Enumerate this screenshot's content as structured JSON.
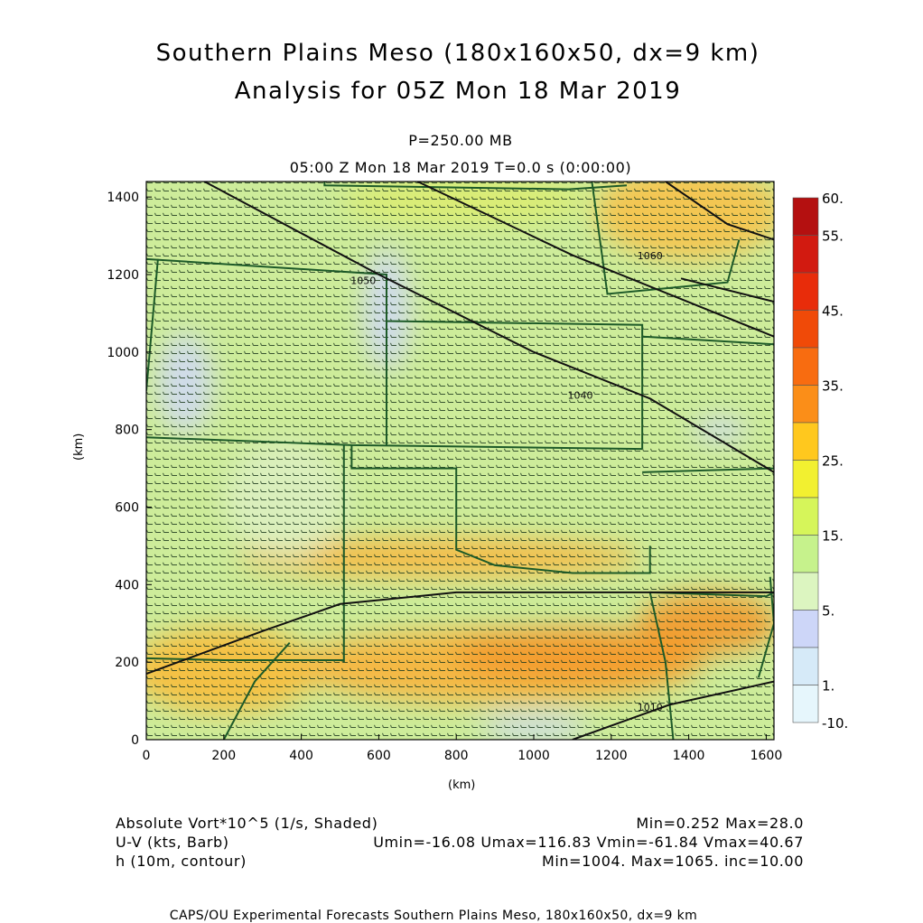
{
  "header": {
    "title_line1": "Southern Plains Meso (180x160x50, dx=9 km)",
    "title_line2": "Analysis for 05Z Mon 18 Mar 2019",
    "level": "P=250.00 MB",
    "valid_time": "05:00 Z Mon 18 Mar 2019    T=0.0 s (0:00:00)"
  },
  "chart_data": {
    "type": "heatmap",
    "xlabel": "(km)",
    "ylabel": "(km)",
    "xlim": [
      0,
      1620
    ],
    "ylim": [
      0,
      1440
    ],
    "x_ticks": [
      "0",
      "200",
      "400",
      "600",
      "800",
      "1000",
      "1200",
      "1400",
      "1600"
    ],
    "y_ticks": [
      "0",
      "200",
      "400",
      "600",
      "800",
      "1000",
      "1200",
      "1400"
    ],
    "colorbar": {
      "labels": [
        "60.",
        "55.",
        "45.",
        "35.",
        "25.",
        "15.",
        "5.",
        "1.",
        "-10."
      ],
      "colors": [
        "#b41010",
        "#d21a10",
        "#e82c0a",
        "#f04a08",
        "#f86c10",
        "#fb8e18",
        "#ffc81e",
        "#f2f030",
        "#d6f55a",
        "#c6f28c",
        "#dcf5c0",
        "#cdd6f8",
        "#d6eaf8",
        "#e6f6fc"
      ]
    },
    "contours": [
      {
        "label": "1060",
        "x_km": 1300,
        "y_km": 1240
      },
      {
        "label": "1050",
        "x_km": 560,
        "y_km": 1175
      },
      {
        "label": "1040",
        "x_km": 1120,
        "y_km": 880
      },
      {
        "label": "1010",
        "x_km": 1300,
        "y_km": 75
      }
    ]
  },
  "legend": {
    "field1": "Absolute Vort*10^5 (1/s, Shaded)",
    "field1_stats": "Min=0.252 Max=28.0",
    "field2": "U-V (kts, Barb)",
    "field2_stats": "Umin=-16.08 Umax=116.83 Vmin=-61.84 Vmax=40.67",
    "field3": "h (10m, contour)",
    "field3_stats": "Min=1004. Max=1065. inc=10.00"
  },
  "footer": {
    "text": "CAPS/OU Experimental Forecasts  Southern Plains Meso, 180x160x50, dx=9 km"
  }
}
